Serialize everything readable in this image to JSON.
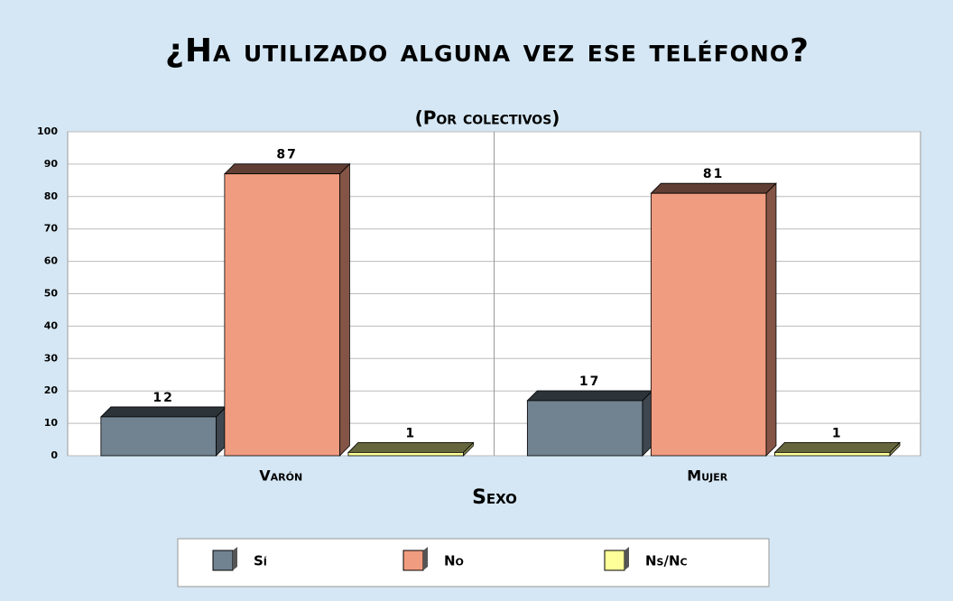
{
  "chart_data": {
    "type": "bar3d",
    "title": "¿Ha utilizado alguna vez ese teléfono?",
    "subtitle": "(Por colectivos)",
    "x_label": "Sexo",
    "categories": [
      "Varón",
      "Mujer"
    ],
    "series": [
      {
        "name": "Sí",
        "color": "#718290",
        "values": [
          12,
          17
        ]
      },
      {
        "name": "No",
        "color": "#f09c80",
        "values": [
          87,
          81
        ]
      },
      {
        "name": "Ns/Nc",
        "color": "#ffff99",
        "values": [
          1,
          1
        ]
      }
    ],
    "ylim": [
      0,
      100
    ],
    "yticks": [
      0,
      10,
      20,
      30,
      40,
      50,
      60,
      70,
      80,
      90,
      100
    ],
    "grid": true
  }
}
